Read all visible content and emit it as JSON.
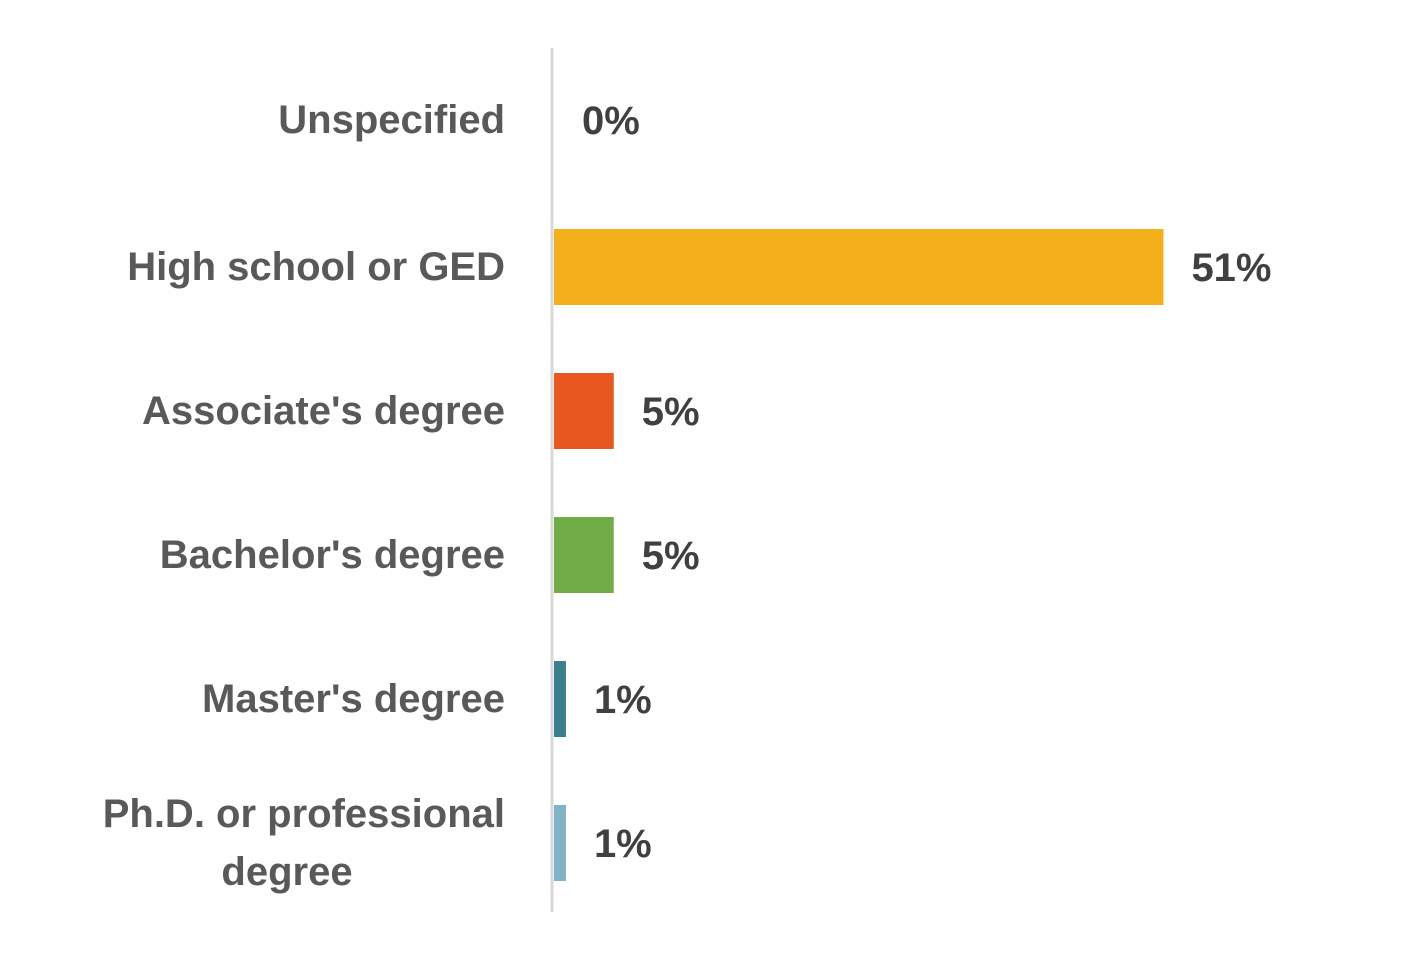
{
  "chart_data": {
    "type": "bar",
    "orientation": "horizontal",
    "categories": [
      "Unspecified",
      "High school or GED",
      "Associate's degree",
      "Bachelor's degree",
      "Master's degree",
      "Ph.D. or professional degree"
    ],
    "category_lines": [
      [
        "Unspecified"
      ],
      [
        "High school or GED"
      ],
      [
        "Associate's degree"
      ],
      [
        "Bachelor's degree"
      ],
      [
        "Master's degree"
      ],
      [
        "Ph.D. or professional",
        "degree"
      ]
    ],
    "values": [
      0,
      51,
      5,
      5,
      1,
      1
    ],
    "value_labels": [
      "0%",
      "51%",
      "5%",
      "5%",
      "1%",
      "1%"
    ],
    "colors": [
      "#F4B01B",
      "#F4B01B",
      "#E8571E",
      "#72AC47",
      "#3A808C",
      "#7DB5C6"
    ],
    "unit": "%",
    "xlim": [
      0,
      60
    ],
    "grid": false,
    "legend": "none",
    "title": "",
    "xlabel": "",
    "ylabel": ""
  }
}
